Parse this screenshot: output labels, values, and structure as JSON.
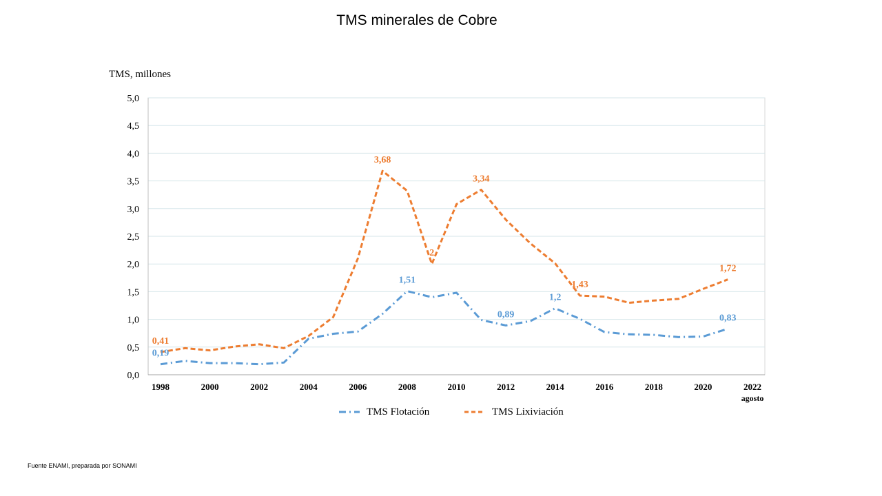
{
  "title": "TMS minerales de Cobre",
  "source_note": "Fuente ENAMI, preparada por SONAMI",
  "chart_data": {
    "type": "line",
    "title": "TMS minerales de Cobre",
    "ylabel": "TMS, millones",
    "xlabel": "",
    "ylim": [
      0,
      5
    ],
    "xlim": [
      1998,
      2022
    ],
    "grid": true,
    "legend_position": "bottom",
    "y_ticks": [
      "0,0",
      "0,5",
      "1,0",
      "1,5",
      "2,0",
      "2,5",
      "3,0",
      "3,5",
      "4,0",
      "4,5",
      "5,0"
    ],
    "x_ticks": [
      "1998",
      "2000",
      "2002",
      "2004",
      "2006",
      "2008",
      "2010",
      "2012",
      "2014",
      "2016",
      "2018",
      "2020",
      "2022"
    ],
    "x_tick_sublabel": "agosto",
    "x": [
      1998,
      1999,
      2000,
      2001,
      2002,
      2003,
      2004,
      2005,
      2006,
      2007,
      2008,
      2009,
      2010,
      2011,
      2012,
      2013,
      2014,
      2015,
      2016,
      2017,
      2018,
      2019,
      2020,
      2021
    ],
    "series": [
      {
        "name": "TMS Flotación",
        "color": "#5b9bd5",
        "dash": "dash-dot",
        "values": [
          0.19,
          0.25,
          0.21,
          0.21,
          0.19,
          0.22,
          0.65,
          0.74,
          0.78,
          1.1,
          1.51,
          1.4,
          1.48,
          0.99,
          0.89,
          0.97,
          1.2,
          1.01,
          0.77,
          0.73,
          0.72,
          0.68,
          0.69,
          0.83
        ],
        "data_labels": [
          {
            "x": 1998,
            "y": 0.19,
            "text": "0,19"
          },
          {
            "x": 2008,
            "y": 1.51,
            "text": "1,51"
          },
          {
            "x": 2012,
            "y": 0.89,
            "text": "0,89"
          },
          {
            "x": 2014,
            "y": 1.2,
            "text": "1,2"
          },
          {
            "x": 2021,
            "y": 0.83,
            "text": "0,83"
          }
        ]
      },
      {
        "name": "TMS Lixiviación",
        "color": "#ed7d31",
        "dash": "dashed",
        "values": [
          0.41,
          0.48,
          0.44,
          0.51,
          0.55,
          0.48,
          0.7,
          1.04,
          2.1,
          3.68,
          3.32,
          2.0,
          3.08,
          3.34,
          2.8,
          2.37,
          2.01,
          1.43,
          1.41,
          1.3,
          1.34,
          1.37,
          1.55,
          1.72
        ],
        "data_labels": [
          {
            "x": 1998,
            "y": 0.41,
            "text": "0,41"
          },
          {
            "x": 2007,
            "y": 3.68,
            "text": "3,68"
          },
          {
            "x": 2009,
            "y": 2.0,
            "text": "2"
          },
          {
            "x": 2011,
            "y": 3.34,
            "text": "3,34"
          },
          {
            "x": 2015,
            "y": 1.43,
            "text": "1,43"
          },
          {
            "x": 2021,
            "y": 1.72,
            "text": "1,72"
          }
        ]
      }
    ]
  }
}
